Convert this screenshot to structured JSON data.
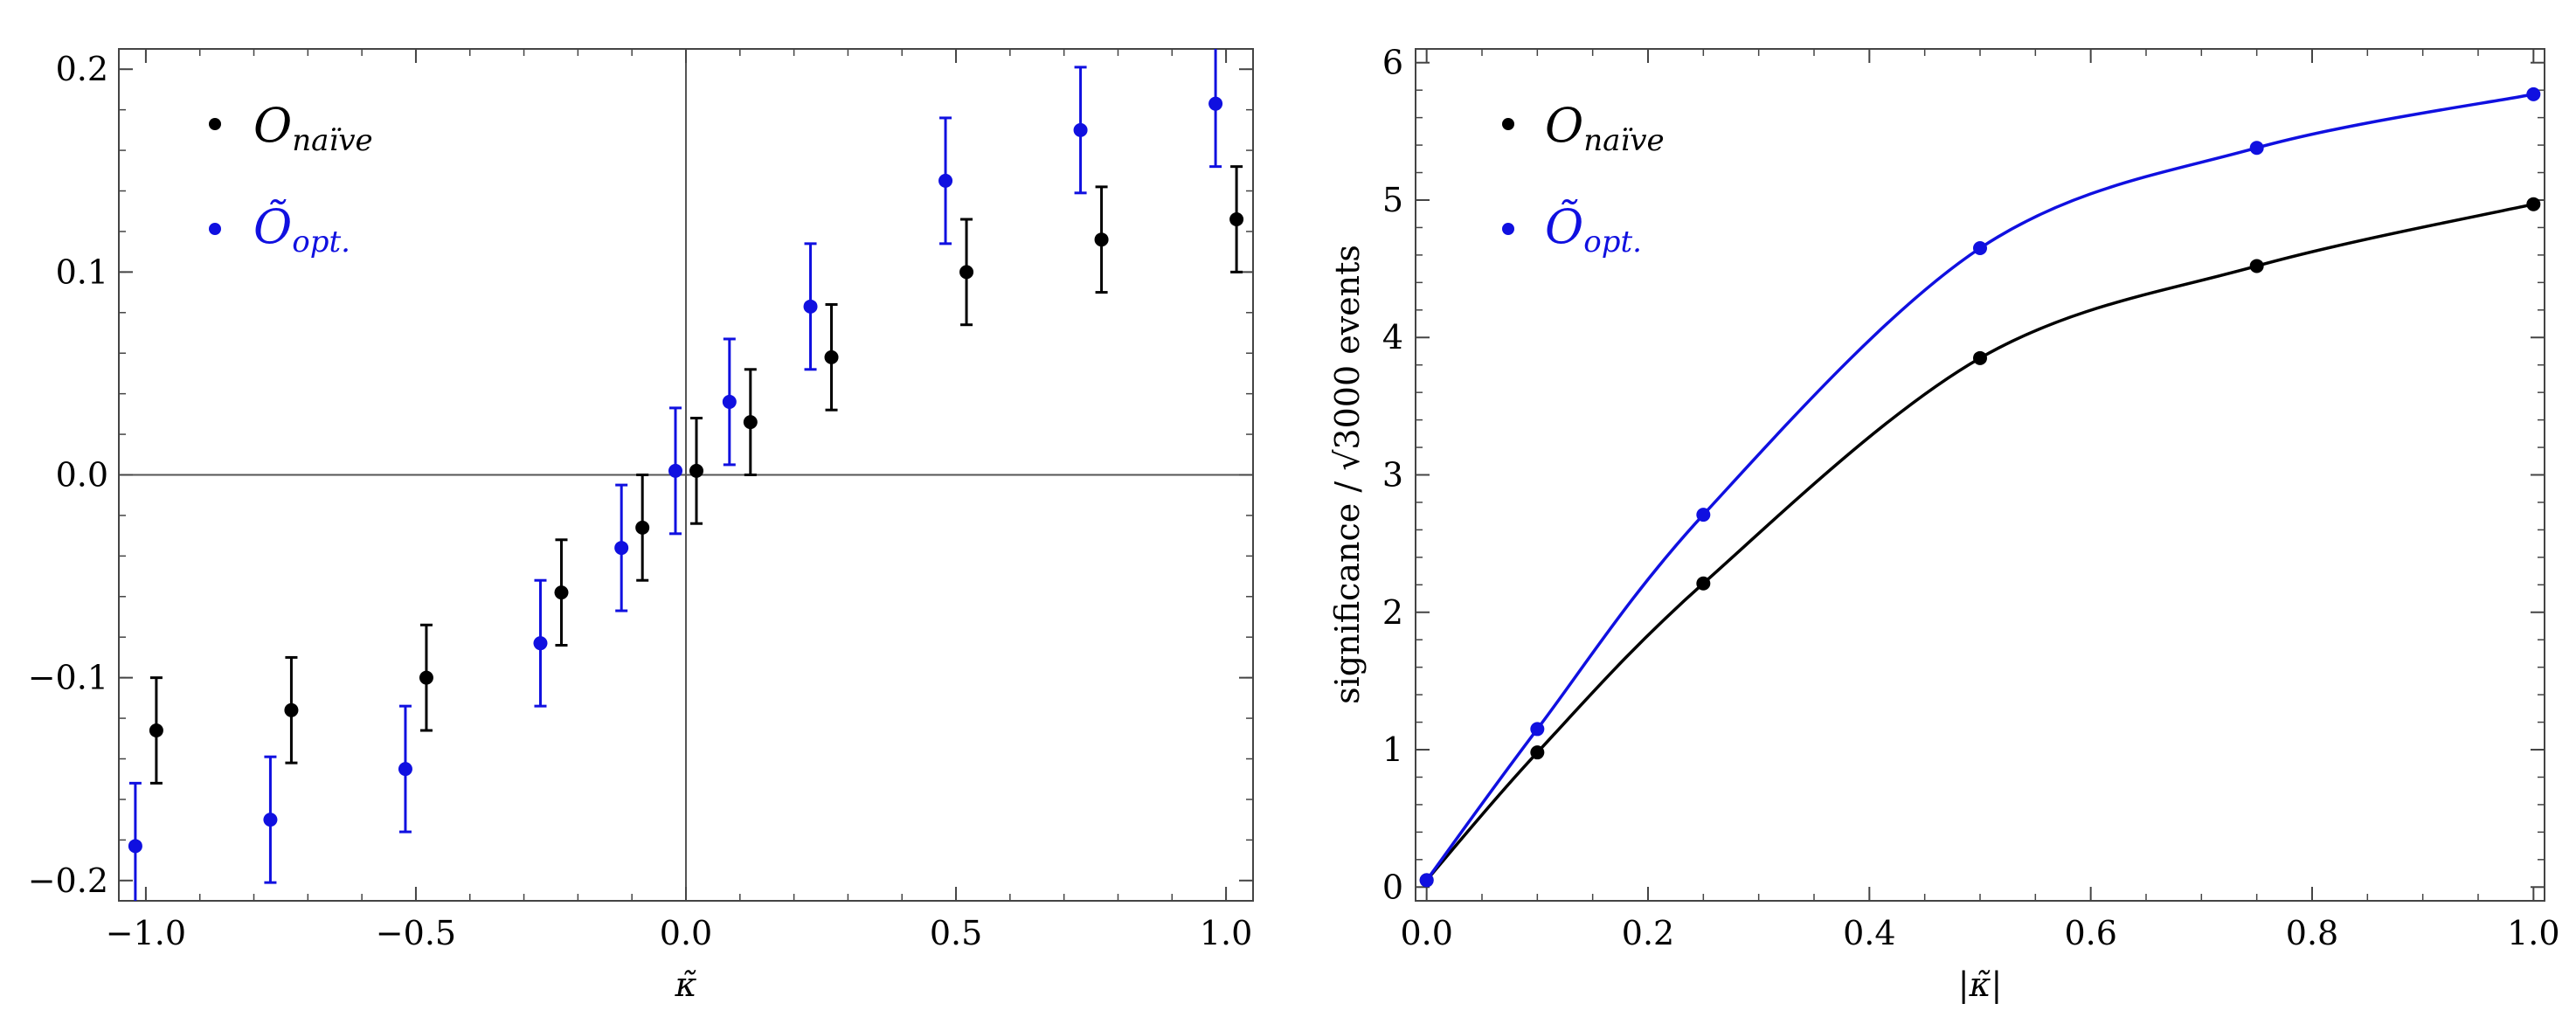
{
  "colors": {
    "naive": "#000000",
    "opt": "#1010e0",
    "axis": "#444444"
  },
  "chart_data": [
    {
      "type": "scatter",
      "subtype": "errorbar",
      "title": "",
      "xlabel": "κ̃",
      "ylabel": "",
      "xlim": [
        -1.05,
        1.05
      ],
      "ylim": [
        -0.21,
        0.21
      ],
      "xticks": [
        -1.0,
        -0.5,
        0.0,
        0.5,
        1.0
      ],
      "xtick_labels": [
        "−1.0",
        "−0.5",
        "0.0",
        "0.5",
        "1.0"
      ],
      "yticks": [
        -0.2,
        -0.1,
        0.0,
        0.1,
        0.2
      ],
      "ytick_labels": [
        "−0.2",
        "−0.1",
        "0.0",
        "0.1",
        "0.2"
      ],
      "legend_position": "top-left",
      "legend": [
        {
          "series": "naive",
          "base": "O",
          "sub": "naïve"
        },
        {
          "series": "opt",
          "base": "Õ",
          "sub": "opt."
        }
      ],
      "series": [
        {
          "name": "O_naive",
          "key": "naive",
          "points": [
            {
              "x": -1.0,
              "y": -0.126,
              "err": 0.026
            },
            {
              "x": -0.75,
              "y": -0.116,
              "err": 0.026
            },
            {
              "x": -0.5,
              "y": -0.1,
              "err": 0.026
            },
            {
              "x": -0.25,
              "y": -0.058,
              "err": 0.026
            },
            {
              "x": -0.1,
              "y": -0.026,
              "err": 0.026
            },
            {
              "x": 0.0,
              "y": 0.002,
              "err": 0.026
            },
            {
              "x": 0.1,
              "y": 0.026,
              "err": 0.026
            },
            {
              "x": 0.25,
              "y": 0.058,
              "err": 0.026
            },
            {
              "x": 0.5,
              "y": 0.1,
              "err": 0.026
            },
            {
              "x": 0.75,
              "y": 0.116,
              "err": 0.026
            },
            {
              "x": 1.0,
              "y": 0.126,
              "err": 0.026
            }
          ]
        },
        {
          "name": "O_opt",
          "key": "opt",
          "points": [
            {
              "x": -1.0,
              "y": -0.183,
              "err": 0.031
            },
            {
              "x": -0.75,
              "y": -0.17,
              "err": 0.031
            },
            {
              "x": -0.5,
              "y": -0.145,
              "err": 0.031
            },
            {
              "x": -0.25,
              "y": -0.083,
              "err": 0.031
            },
            {
              "x": -0.1,
              "y": -0.036,
              "err": 0.031
            },
            {
              "x": 0.0,
              "y": 0.002,
              "err": 0.031
            },
            {
              "x": 0.1,
              "y": 0.036,
              "err": 0.031
            },
            {
              "x": 0.25,
              "y": 0.083,
              "err": 0.031
            },
            {
              "x": 0.5,
              "y": 0.145,
              "err": 0.031
            },
            {
              "x": 0.75,
              "y": 0.17,
              "err": 0.031
            },
            {
              "x": 1.0,
              "y": 0.183,
              "err": 0.031
            }
          ]
        }
      ]
    },
    {
      "type": "line",
      "title": "",
      "xlabel": "|κ̃|",
      "ylabel": "significance / √3000 events",
      "xlim": [
        -0.01,
        1.01
      ],
      "ylim": [
        -0.1,
        6.1
      ],
      "xticks": [
        0.0,
        0.2,
        0.4,
        0.6,
        0.8,
        1.0
      ],
      "xtick_labels": [
        "0.0",
        "0.2",
        "0.4",
        "0.6",
        "0.8",
        "1.0"
      ],
      "yticks": [
        0,
        1,
        2,
        3,
        4,
        5,
        6
      ],
      "ytick_labels": [
        "0",
        "1",
        "2",
        "3",
        "4",
        "5",
        "6"
      ],
      "legend_position": "top-left",
      "legend": [
        {
          "series": "naive",
          "base": "O",
          "sub": "naïve"
        },
        {
          "series": "opt",
          "base": "Õ",
          "sub": "opt."
        }
      ],
      "x": [
        0.0,
        0.1,
        0.25,
        0.5,
        0.75,
        1.0
      ],
      "series": [
        {
          "name": "O_naive",
          "key": "naive",
          "values": [
            0.05,
            0.98,
            2.21,
            3.85,
            4.52,
            4.97
          ]
        },
        {
          "name": "O_opt",
          "key": "opt",
          "values": [
            0.05,
            1.15,
            2.71,
            4.65,
            5.38,
            5.77
          ]
        }
      ]
    }
  ]
}
